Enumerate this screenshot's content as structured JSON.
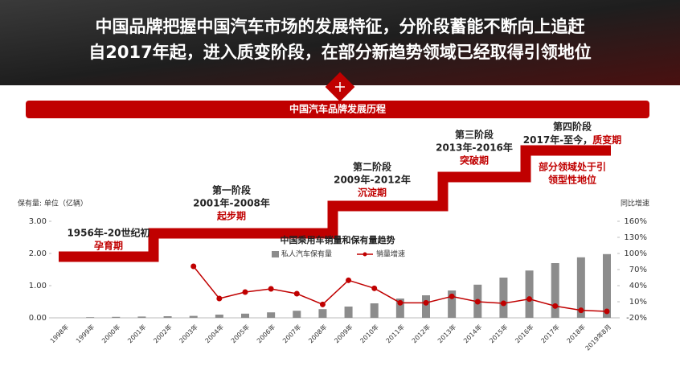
{
  "header": {
    "title_lines": [
      "中国品牌把握中国汽车市场的发展特征，分阶段蓄能不断向上追赶",
      "自2017年起，进入质变阶段，在部分新趋势领域已经取得引领地位"
    ]
  },
  "banner": "中国汽车品牌发展历程",
  "stages": [
    {
      "lines": [
        "1956年-20世纪初"
      ],
      "highlight": "孕育期"
    },
    {
      "lines": [
        "第一阶段",
        "2001年-2008年"
      ],
      "highlight": "起步期"
    },
    {
      "lines": [
        "第二阶段",
        "2009年-2012年"
      ],
      "highlight": "沉淀期"
    },
    {
      "lines": [
        "第三阶段",
        "2013年-2016年"
      ],
      "highlight": "突破期"
    },
    {
      "lines": [
        "第四阶段",
        "2017年-至今，"
      ],
      "highlight": "质变期",
      "note": [
        "部分领域处于引",
        "领型性地位"
      ]
    }
  ],
  "chart_data": {
    "type": "bar_line",
    "title": "中国乘用车销量和保有量趋势",
    "y_label": "保有量: 单位（亿辆）",
    "y2_label": "同比增速",
    "categories": [
      "1998年",
      "1999年",
      "2000年",
      "2001年",
      "2002年",
      "2003年",
      "2004年",
      "2005年",
      "2006年",
      "2007年",
      "2008年",
      "2009年",
      "2010年",
      "2011年",
      "2012年",
      "2013年",
      "2014年",
      "2015年",
      "2016年",
      "2017年",
      "2018年",
      "2019年8月"
    ],
    "series": [
      {
        "name": "私人汽车保有量",
        "type": "bar",
        "color": "#8c8c8c",
        "values": [
          null,
          0.02,
          0.03,
          0.04,
          0.05,
          0.06,
          0.1,
          0.13,
          0.17,
          0.22,
          0.27,
          0.35,
          0.45,
          0.6,
          0.7,
          0.85,
          1.03,
          1.25,
          1.47,
          1.7,
          1.88,
          1.98
        ]
      },
      {
        "name": "销量增速",
        "type": "line",
        "axis": "y2",
        "color": "#c00000",
        "values": [
          null,
          null,
          null,
          null,
          null,
          76,
          16,
          28,
          34,
          25,
          5,
          50,
          35,
          8,
          8,
          20,
          10,
          7,
          15,
          2,
          -6,
          -8
        ]
      }
    ],
    "ylim": [
      0,
      3
    ],
    "yticks": [
      {
        "value": 0,
        "label": "0.00"
      },
      {
        "value": 1,
        "label": "1.00"
      },
      {
        "value": 2,
        "label": "2.00"
      },
      {
        "value": 3,
        "label": "3.00"
      }
    ],
    "y2lim": [
      -20,
      160
    ],
    "y2ticks": [
      {
        "value": -20,
        "label": "-20%"
      },
      {
        "value": 10,
        "label": "10%"
      },
      {
        "value": 40,
        "label": "40%"
      },
      {
        "value": 70,
        "label": "70%"
      },
      {
        "value": 100,
        "label": "100%"
      },
      {
        "value": 130,
        "label": "130%"
      },
      {
        "value": 160,
        "label": "160%"
      }
    ]
  }
}
